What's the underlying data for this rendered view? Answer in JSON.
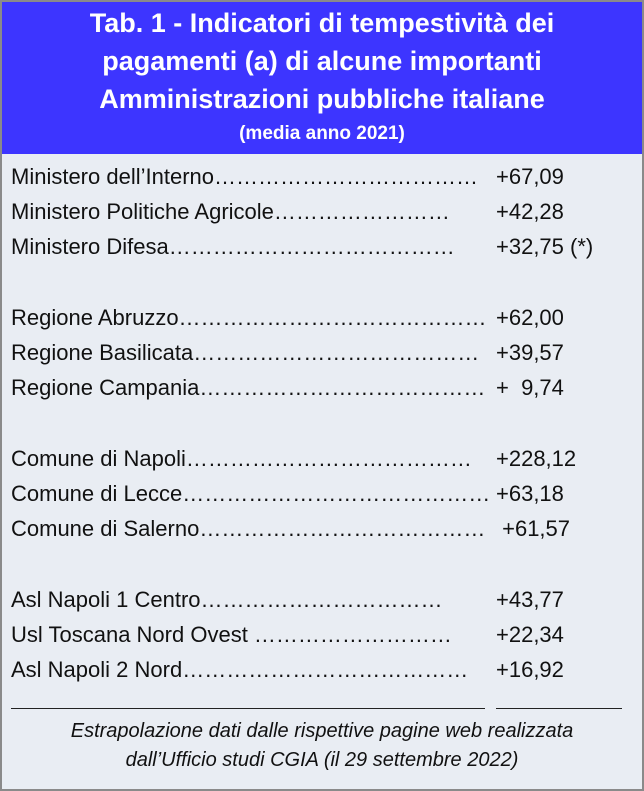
{
  "header": {
    "title_line1": "Tab. 1 - Indicatori di tempestività dei",
    "title_line2": "pagamenti (a) di alcune importanti",
    "title_line3": "Amministrazioni pubbliche italiane",
    "subtitle": "(media anno 2021)"
  },
  "rows": [
    {
      "label": "Ministero dell’Interno………………………………",
      "value": "+67,09"
    },
    {
      "label": "Ministero Politiche Agricole……………………",
      "value": "+42,28"
    },
    {
      "label": "Ministero Difesa…………………………………",
      "value": "+32,75 (*)"
    },
    {
      "label": "Regione Abruzzo……………………………………",
      "value": "+62,00"
    },
    {
      "label": "Regione Basilicata…………………………………",
      "value": "+39,57"
    },
    {
      "label": "Regione Campania…………………………………",
      "value": "+  9,74"
    },
    {
      "label": "Comune di Napoli…………………………………",
      "value": "+228,12"
    },
    {
      "label": "Comune di Lecce……………………………………",
      "value": "+63,18"
    },
    {
      "label": "Comune di Salerno…………………………………",
      "value": " +61,57"
    },
    {
      "label": "Asl Napoli 1 Centro……………………………",
      "value": "+43,77"
    },
    {
      "label": "Usl Toscana Nord Ovest ………………………",
      "value": "+22,34"
    },
    {
      "label": "Asl Napoli 2 Nord…………………………………",
      "value": "+16,92"
    }
  ],
  "footer": {
    "note_line1": "Estrapolazione dati dalle rispettive pagine web realizzata",
    "note_line2": "dall’Ufficio studi CGIA (il 29 settembre 2022)"
  },
  "colors": {
    "header_bg": "#3d35ff",
    "body_bg": "#e9edf3"
  }
}
